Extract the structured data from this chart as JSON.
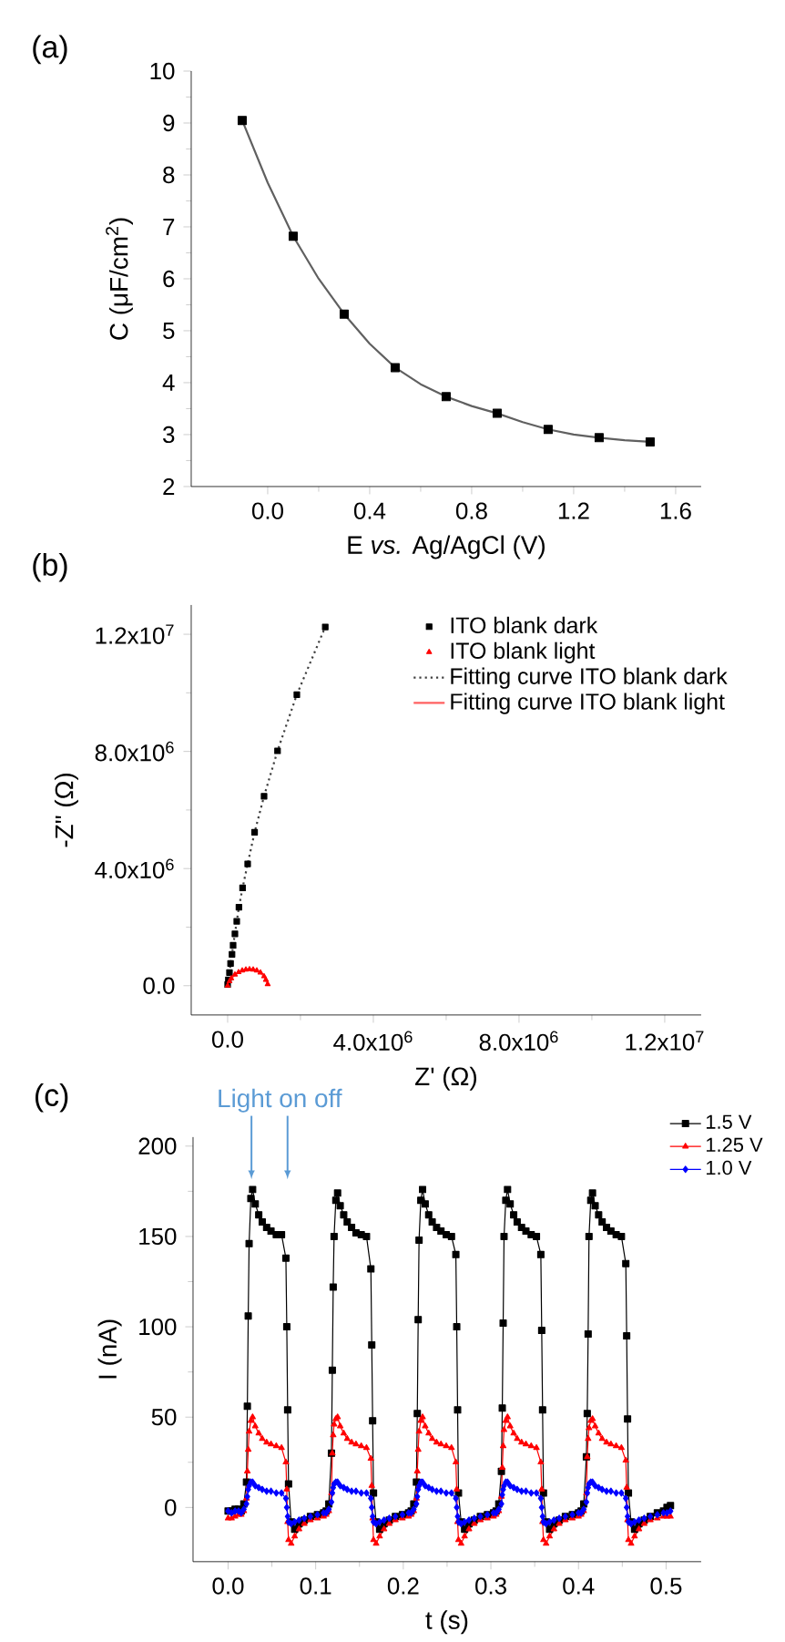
{
  "chart_data": [
    {
      "type": "scatter",
      "title": "(a)",
      "xlabel": "E *vs.* Ag/AgCl (V)",
      "ylabel": "C (μF/cm$^{2}$)",
      "x": [
        -0.1,
        0.1,
        0.3,
        0.5,
        0.7,
        0.9,
        1.1,
        1.3,
        1.5
      ],
      "series": [
        {
          "type": "scatter",
          "marker": "square",
          "color": "#000000",
          "values": [
            9.05,
            6.82,
            5.32,
            4.29,
            3.73,
            3.41,
            3.1,
            2.94,
            2.86
          ]
        },
        {
          "type": "line",
          "color": "#606060",
          "x": [
            -0.1,
            0.0,
            0.1,
            0.2,
            0.3,
            0.4,
            0.5,
            0.6,
            0.7,
            0.8,
            0.9,
            1.0,
            1.1,
            1.2,
            1.3,
            1.4,
            1.5
          ],
          "values": [
            9.05,
            7.85,
            6.82,
            6.0,
            5.32,
            4.75,
            4.29,
            3.97,
            3.73,
            3.55,
            3.41,
            3.24,
            3.1,
            3.0,
            2.94,
            2.89,
            2.86
          ]
        }
      ],
      "xlim": [
        -0.3,
        1.7
      ],
      "ylim": [
        2,
        10
      ],
      "xticks": [
        {
          "value": 0,
          "label": "0.0"
        },
        0.4,
        0.8,
        1.2,
        1.6
      ],
      "yticks": [
        2,
        3,
        4,
        5,
        6,
        7,
        8,
        9,
        10
      ]
    },
    {
      "type": "scatter",
      "title": "(b)",
      "xlabel": "Z' (Ω)",
      "ylabel": "-Z\" (Ω)",
      "legend": "top right",
      "series": [
        {
          "name": "ITO blank dark",
          "type": "scatter",
          "marker": "square",
          "color": "#000000",
          "x": [
            0,
            20000,
            50000,
            80000,
            120000,
            150000,
            200000,
            250000,
            310000,
            410000,
            550000,
            740000,
            1000000,
            1370000,
            1900000,
            2680000
          ],
          "values": [
            40000,
            200000,
            450000,
            760000,
            1070000,
            1380000,
            1770000,
            2200000,
            2680000,
            3340000,
            4160000,
            5240000,
            6470000,
            8020000,
            9940000,
            12250000
          ]
        },
        {
          "name": "ITO blank light",
          "type": "scatter",
          "marker": "triangle",
          "color": "#ff0000",
          "x": [
            0,
            50000,
            100000,
            200000,
            300000,
            400000,
            500000,
            600000,
            700000,
            800000,
            900000,
            1000000,
            1050000,
            1100000
          ],
          "values": [
            0,
            150000,
            250000,
            380000,
            460000,
            520000,
            550000,
            560000,
            550000,
            520000,
            450000,
            320000,
            200000,
            50000
          ]
        },
        {
          "name": "Fitting curve ITO blank dark",
          "type": "line",
          "line_style": "dotted",
          "color": "#404040",
          "x": [
            0,
            20000,
            50000,
            80000,
            120000,
            150000,
            200000,
            250000,
            310000,
            410000,
            550000,
            740000,
            1000000,
            1370000,
            1900000,
            2680000
          ],
          "values": [
            40000,
            200000,
            450000,
            760000,
            1070000,
            1380000,
            1770000,
            2200000,
            2680000,
            3340000,
            4160000,
            5240000,
            6470000,
            8020000,
            9940000,
            12250000
          ]
        },
        {
          "name": "Fitting curve ITO blank light",
          "type": "line",
          "line_style": "solid",
          "color": "#ff6060",
          "x": [
            0,
            50000,
            100000,
            200000,
            300000,
            400000,
            500000,
            600000,
            700000,
            800000,
            900000,
            1000000,
            1050000,
            1100000
          ],
          "values": [
            0,
            150000,
            250000,
            380000,
            460000,
            520000,
            550000,
            560000,
            550000,
            520000,
            450000,
            320000,
            200000,
            50000
          ]
        }
      ],
      "xlim": [
        -1000000,
        13000000
      ],
      "ylim": [
        -1000000,
        13000000
      ],
      "xticks": [
        {
          "value": 0,
          "label": "0.0"
        },
        {
          "value": 4000000,
          "label": "4.0x10$^{6}$"
        },
        {
          "value": 8000000,
          "label": "8.0x10$^{6}$"
        },
        {
          "value": 12000000,
          "label": "1.2x10$^{7}$"
        }
      ],
      "yticks": [
        {
          "value": 0,
          "label": "0.0"
        },
        {
          "value": 4000000,
          "label": "4.0x10$^{6}$"
        },
        {
          "value": 8000000,
          "label": "8.0x10$^{6}$"
        },
        {
          "value": 12000000,
          "label": "1.2x10$^{7}$"
        }
      ]
    },
    {
      "type": "line",
      "title": "(c)",
      "xlabel": "t (s)",
      "ylabel": "I (nA)",
      "legend": "top right",
      "annotations": [
        "Light on off"
      ],
      "x": [
        0.0,
        0.004,
        0.008,
        0.012,
        0.015,
        0.018,
        0.021,
        0.022,
        0.023,
        0.024,
        0.026,
        0.028,
        0.031,
        0.035,
        0.039,
        0.044,
        0.049,
        0.055,
        0.061,
        0.066,
        0.067,
        0.068,
        0.069,
        0.072,
        0.076,
        0.081,
        0.087,
        0.094,
        0.102,
        0.109,
        0.112,
        0.115,
        0.118,
        0.119,
        0.12,
        0.121,
        0.123,
        0.125,
        0.128,
        0.132,
        0.136,
        0.141,
        0.146,
        0.152,
        0.158,
        0.163,
        0.164,
        0.165,
        0.166,
        0.169,
        0.173,
        0.178,
        0.184,
        0.191,
        0.199,
        0.206,
        0.209,
        0.212,
        0.215,
        0.216,
        0.217,
        0.218,
        0.22,
        0.222,
        0.225,
        0.229,
        0.233,
        0.238,
        0.243,
        0.249,
        0.255,
        0.26,
        0.261,
        0.262,
        0.263,
        0.266,
        0.27,
        0.275,
        0.281,
        0.288,
        0.296,
        0.303,
        0.306,
        0.309,
        0.312,
        0.313,
        0.314,
        0.315,
        0.317,
        0.319,
        0.322,
        0.326,
        0.33,
        0.335,
        0.34,
        0.346,
        0.352,
        0.357,
        0.358,
        0.359,
        0.36,
        0.363,
        0.367,
        0.372,
        0.378,
        0.385,
        0.393,
        0.4,
        0.403,
        0.406,
        0.409,
        0.41,
        0.411,
        0.412,
        0.414,
        0.416,
        0.419,
        0.423,
        0.427,
        0.432,
        0.437,
        0.443,
        0.449,
        0.454,
        0.455,
        0.456,
        0.457,
        0.46,
        0.464,
        0.469,
        0.475,
        0.482,
        0.49,
        0.497,
        0.501,
        0.505
      ],
      "series": [
        {
          "name": "1.5 V",
          "marker": "square",
          "color": "#000000",
          "values": [
            -2,
            -2,
            -1,
            -1,
            -2,
            2,
            14,
            56,
            106,
            146,
            171,
            176,
            168,
            162,
            158,
            155,
            153,
            151,
            151,
            138,
            100,
            54,
            13,
            -8,
            -12,
            -9,
            -7,
            -5,
            -4,
            -3,
            -2,
            2,
            30,
            76,
            122,
            150,
            170,
            174,
            167,
            162,
            158,
            155,
            152,
            151,
            150,
            132,
            90,
            48,
            8,
            -8,
            -12,
            -9,
            -7,
            -5,
            -4,
            -3,
            -2,
            2,
            14,
            52,
            104,
            148,
            170,
            176,
            168,
            162,
            158,
            155,
            153,
            151,
            150,
            140,
            100,
            54,
            8,
            -8,
            -12,
            -9,
            -7,
            -5,
            -4,
            -3,
            -2,
            2,
            20,
            55,
            102,
            150,
            170,
            176,
            168,
            162,
            158,
            155,
            153,
            151,
            150,
            140,
            98,
            54,
            8,
            -8,
            -12,
            -9,
            -7,
            -5,
            -4,
            -3,
            -2,
            2,
            28,
            52,
            96,
            150,
            170,
            174,
            167,
            162,
            158,
            155,
            153,
            151,
            150,
            135,
            95,
            49,
            8,
            -8,
            -12,
            -9,
            -7,
            -5,
            -3,
            -2,
            0,
            1
          ]
        },
        {
          "name": "1.25 V",
          "marker": "triangle",
          "color": "#ff0000",
          "values": [
            -6,
            -6,
            -5,
            -4,
            -4,
            -2,
            5,
            20,
            32,
            42,
            48,
            50,
            45,
            41,
            38,
            36,
            35,
            34,
            33,
            25,
            10,
            -8,
            -18,
            -20,
            -16,
            -12,
            -9,
            -7,
            -6,
            -5,
            -4,
            -2,
            8,
            30,
            40,
            46,
            49,
            50,
            45,
            41,
            38,
            36,
            35,
            34,
            33,
            27,
            12,
            -6,
            -18,
            -20,
            -16,
            -12,
            -9,
            -7,
            -6,
            -5,
            -4,
            -2,
            5,
            20,
            32,
            42,
            48,
            50,
            45,
            41,
            38,
            36,
            35,
            34,
            33,
            25,
            10,
            -8,
            -18,
            -20,
            -16,
            -12,
            -9,
            -7,
            -6,
            -5,
            -4,
            -2,
            6,
            22,
            34,
            43,
            48,
            50,
            45,
            41,
            38,
            36,
            35,
            34,
            33,
            25,
            10,
            -8,
            -18,
            -20,
            -16,
            -12,
            -9,
            -7,
            -6,
            -5,
            -4,
            -2,
            8,
            28,
            38,
            44,
            48,
            49,
            45,
            41,
            38,
            36,
            35,
            34,
            33,
            26,
            11,
            -7,
            -18,
            -20,
            -16,
            -12,
            -9,
            -7,
            -6,
            -5,
            -5,
            -5
          ]
        },
        {
          "name": "1.0 V",
          "marker": "diamond",
          "color": "#0000ff",
          "values": [
            -2,
            -3,
            -2,
            -2,
            -3,
            -1,
            2,
            6,
            10,
            12,
            14,
            14,
            12,
            11,
            10,
            9,
            9,
            8,
            8,
            5,
            0,
            -5,
            -8,
            -9,
            -8,
            -7,
            -6,
            -5,
            -4,
            -3,
            -3,
            -1,
            3,
            8,
            11,
            13,
            14,
            14,
            12,
            11,
            10,
            9,
            9,
            8,
            8,
            5,
            0,
            -5,
            -8,
            -9,
            -8,
            -7,
            -6,
            -5,
            -4,
            -3,
            -3,
            -1,
            2,
            6,
            10,
            12,
            14,
            14,
            12,
            11,
            10,
            9,
            9,
            8,
            8,
            5,
            0,
            -5,
            -8,
            -9,
            -8,
            -7,
            -6,
            -5,
            -4,
            -3,
            -3,
            -1,
            2,
            7,
            10,
            12,
            14,
            14,
            12,
            11,
            10,
            9,
            9,
            8,
            8,
            5,
            0,
            -5,
            -8,
            -9,
            -8,
            -7,
            -6,
            -5,
            -4,
            -3,
            -3,
            -1,
            3,
            8,
            11,
            13,
            14,
            14,
            12,
            11,
            10,
            9,
            9,
            8,
            8,
            5,
            0,
            -5,
            -8,
            -9,
            -8,
            -7,
            -6,
            -5,
            -4,
            -3,
            -3,
            -2
          ]
        }
      ],
      "xlim": [
        -0.04,
        0.54
      ],
      "ylim": [
        -30,
        205
      ],
      "xticks": [
        {
          "value": 0,
          "label": "0.0"
        },
        0.1,
        0.2,
        0.3,
        0.4,
        0.5
      ],
      "yticks": [
        0,
        50,
        100,
        150,
        200
      ]
    }
  ]
}
